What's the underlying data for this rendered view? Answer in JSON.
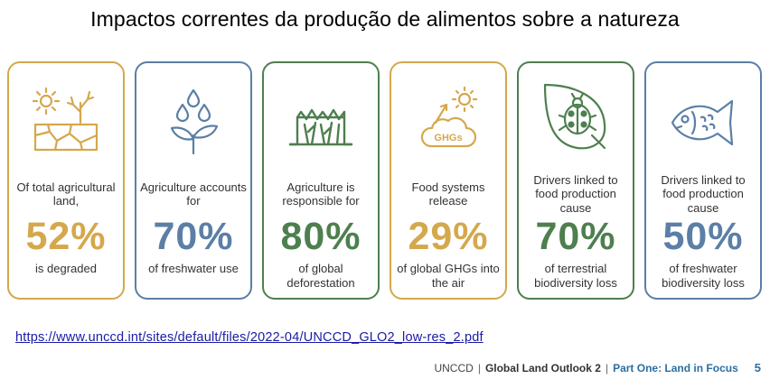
{
  "title": "Impactos correntes da produção de alimentos sobre a natureza",
  "colors": {
    "gold": "#d4a84c",
    "blue": "#5b7fa6",
    "green": "#4e7f4f"
  },
  "cards": [
    {
      "top": "Of total agricultural land,",
      "pct": "52%",
      "bottom": "is degraded",
      "icon": "degraded-land-icon",
      "color": "#d4a84c"
    },
    {
      "top": "Agriculture accounts for",
      "pct": "70%",
      "bottom": "of freshwater use",
      "icon": "water-drops-plant-icon",
      "color": "#5b7fa6"
    },
    {
      "top": "Agriculture is responsible for",
      "pct": "80%",
      "bottom": "of global deforestation",
      "icon": "tree-stump-icon",
      "color": "#4e7f4f"
    },
    {
      "top": "Food systems release",
      "pct": "29%",
      "bottom": "of global GHGs into the air",
      "icon": "ghg-cloud-icon",
      "color": "#d4a84c"
    },
    {
      "top": "Drivers linked to food production cause",
      "pct": "70%",
      "bottom": "of terrestrial biodiversity loss",
      "icon": "leaf-ladybug-icon",
      "color": "#4e7f4f"
    },
    {
      "top": "Drivers linked to food production cause",
      "pct": "50%",
      "bottom": "of freshwater biodiversity loss",
      "icon": "fish-icon",
      "color": "#5b7fa6"
    }
  ],
  "ghg_label": "GHGs",
  "link": "https://www.unccd.int/sites/default/files/2022-04/UNCCD_GLO2_low-res_2.pdf",
  "footer": {
    "org": "UNCCD",
    "report": "Global Land Outlook 2",
    "part": "Part One: Land in Focus",
    "page": "5"
  }
}
